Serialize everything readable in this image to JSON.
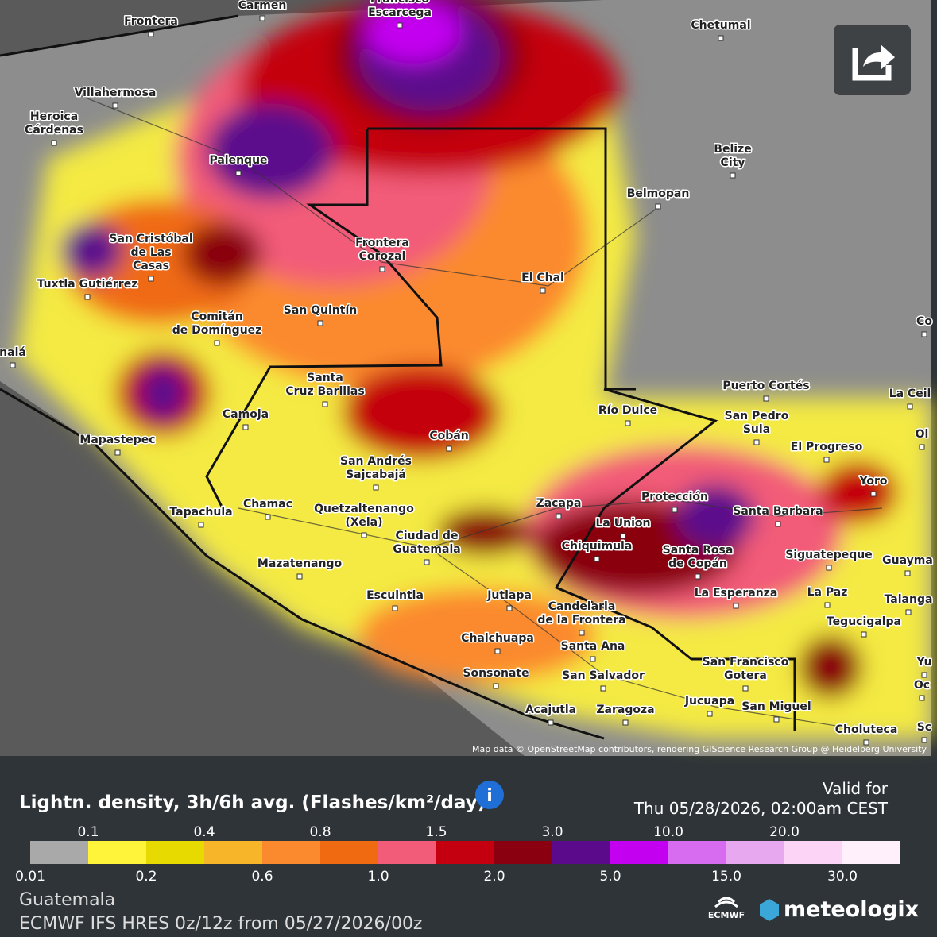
{
  "map": {
    "places": [
      {
        "lines": [
          "Carmen"
        ]
      },
      {
        "lines": [
          "Francisco",
          "Escarcega"
        ]
      },
      {
        "lines": [
          "Frontera"
        ]
      },
      {
        "lines": [
          "Chetumal"
        ]
      },
      {
        "lines": [
          "Villahermosa"
        ]
      },
      {
        "lines": [
          "Heroica",
          "Cárdenas"
        ]
      },
      {
        "lines": [
          "Palenque"
        ]
      },
      {
        "lines": [
          "Belize",
          "City"
        ]
      },
      {
        "lines": [
          "Belmopan"
        ]
      },
      {
        "lines": [
          "San Cristóbal",
          "de Las",
          "Casas"
        ]
      },
      {
        "lines": [
          "Frontera",
          "Corozal"
        ]
      },
      {
        "lines": [
          "Tuxtla Gutiérrez"
        ]
      },
      {
        "lines": [
          "El Chal"
        ]
      },
      {
        "lines": [
          "San Quintín"
        ]
      },
      {
        "lines": [
          "Comitán",
          "de Domínguez"
        ]
      },
      {
        "lines": [
          "Co"
        ]
      },
      {
        "lines": [
          "nalá"
        ]
      },
      {
        "lines": [
          "Santa",
          "Cruz Barillas"
        ]
      },
      {
        "lines": [
          "Puerto Cortés"
        ]
      },
      {
        "lines": [
          "La Ceil"
        ]
      },
      {
        "lines": [
          "Camoja"
        ]
      },
      {
        "lines": [
          "Río Dulce"
        ]
      },
      {
        "lines": [
          "San Pedro",
          "Sula"
        ]
      },
      {
        "lines": [
          "Cobán"
        ]
      },
      {
        "lines": [
          "Mapastepec"
        ]
      },
      {
        "lines": [
          "Ol"
        ]
      },
      {
        "lines": [
          "El Progreso"
        ]
      },
      {
        "lines": [
          "San Andrés",
          "Sajcabajá"
        ]
      },
      {
        "lines": [
          "Yoro"
        ]
      },
      {
        "lines": [
          "Protección"
        ]
      },
      {
        "lines": [
          "Zacapa"
        ]
      },
      {
        "lines": [
          "Chamac"
        ]
      },
      {
        "lines": [
          "Quetzaltenango",
          "(Xela)"
        ]
      },
      {
        "lines": [
          "Tapachula"
        ]
      },
      {
        "lines": [
          "Santa Barbara"
        ]
      },
      {
        "lines": [
          "La Union"
        ]
      },
      {
        "lines": [
          "Ciudad de",
          "Guatemala"
        ]
      },
      {
        "lines": [
          "Chiquimula"
        ]
      },
      {
        "lines": [
          "Santa Rosa",
          "de Copán"
        ]
      },
      {
        "lines": [
          "Siguatepeque"
        ]
      },
      {
        "lines": [
          "Guayma"
        ]
      },
      {
        "lines": [
          "Mazatenango"
        ]
      },
      {
        "lines": [
          "La Esperanza"
        ]
      },
      {
        "lines": [
          "La Paz"
        ]
      },
      {
        "lines": [
          "Escuintla"
        ]
      },
      {
        "lines": [
          "Jutiapa"
        ]
      },
      {
        "lines": [
          "Talanga"
        ]
      },
      {
        "lines": [
          "Candelaria",
          "de la Frontera"
        ]
      },
      {
        "lines": [
          "Tegucigalpa"
        ]
      },
      {
        "lines": [
          "Chalchuapa"
        ]
      },
      {
        "lines": [
          "Santa Ana"
        ]
      },
      {
        "lines": [
          "San Francisco",
          "Gotera"
        ]
      },
      {
        "lines": [
          "Yu"
        ]
      },
      {
        "lines": [
          "Sonsonate"
        ]
      },
      {
        "lines": [
          "San Salvador"
        ]
      },
      {
        "lines": [
          "Oc"
        ]
      },
      {
        "lines": [
          "Jucuapa"
        ]
      },
      {
        "lines": [
          "San Miguel"
        ]
      },
      {
        "lines": [
          "Acajutla"
        ]
      },
      {
        "lines": [
          "Zaragoza"
        ]
      },
      {
        "lines": [
          "Choluteca"
        ]
      },
      {
        "lines": [
          "Sc"
        ]
      }
    ],
    "attribution": "Map data © OpenStreetMap contributors, rendering GIScience Research Group @ Heidelberg University"
  },
  "legend": {
    "title": "Lightn. density, 3h/6h avg. (Flashes/km²/day)",
    "colors": [
      "#a9a9a9",
      "#fff43a",
      "#e6da00",
      "#f7b52a",
      "#fb8a2e",
      "#f06a12",
      "#f25c78",
      "#c40010",
      "#8a0010",
      "#5c0a8c",
      "#c300f0",
      "#d86cf0",
      "#e8a8f0",
      "#fcd4f6",
      "#fff0fc"
    ],
    "ticks": [
      0.01,
      0.1,
      0.2,
      0.4,
      0.6,
      0.8,
      {
        "value": 1,
        "label": "1.0"
      },
      1.5,
      {
        "value": 2,
        "label": "2.0"
      },
      {
        "value": 3,
        "label": "3.0"
      },
      {
        "value": 5,
        "label": "5.0"
      },
      {
        "value": 10,
        "label": "10.0"
      },
      {
        "value": 15,
        "label": "15.0"
      },
      {
        "value": 20,
        "label": "20.0"
      },
      {
        "value": 30,
        "label": "30.0"
      }
    ]
  },
  "valid": {
    "label": "Valid for",
    "time": "Thu 05/28/2026, 02:00am CEST"
  },
  "footer": {
    "region": "Guatemala",
    "model": "ECMWF IFS HRES 0z/12z from 05/27/2026/00z",
    "ecmwf": "ECMWF",
    "brand": "meteologix"
  }
}
